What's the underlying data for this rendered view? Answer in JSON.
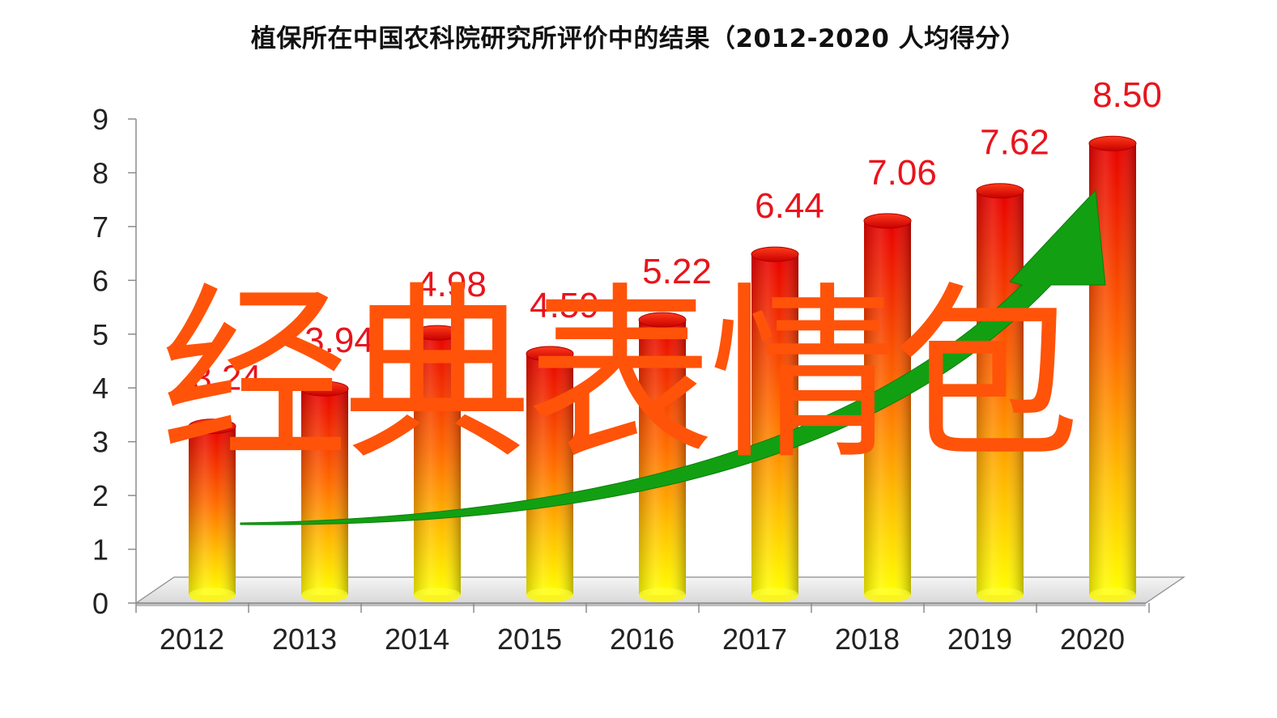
{
  "chart_data": {
    "type": "bar",
    "style": "3d-cylinder",
    "title": "植保所在中国农科院研究所评价中的结果（2012-2020  人均得分）",
    "categories": [
      "2012",
      "2013",
      "2014",
      "2015",
      "2016",
      "2017",
      "2018",
      "2019",
      "2020"
    ],
    "values": [
      3.24,
      3.94,
      4.98,
      4.59,
      5.22,
      6.44,
      7.06,
      7.62,
      8.5
    ],
    "value_labels": [
      "3.24",
      "3.94",
      "4.98",
      "4.59",
      "5.22",
      "6.44",
      "7.06",
      "7.62",
      "8.50"
    ],
    "ylim": [
      0,
      9
    ],
    "yticks": [
      "0",
      "1",
      "2",
      "3",
      "4",
      "5",
      "6",
      "7",
      "8",
      "9"
    ],
    "xlabel": "",
    "ylabel": "",
    "grid": false,
    "legend": "none",
    "trend_arrow": {
      "color": "#12a012",
      "direction": "up-right"
    },
    "bar_gradient": {
      "top": "#ee0000",
      "middle": "#ff7f00",
      "bottom": "#ffff00"
    },
    "value_label_color": "#e8141c"
  },
  "overlay": {
    "watermark_text": "经典表情包",
    "watermark_color": "#ff5309"
  }
}
